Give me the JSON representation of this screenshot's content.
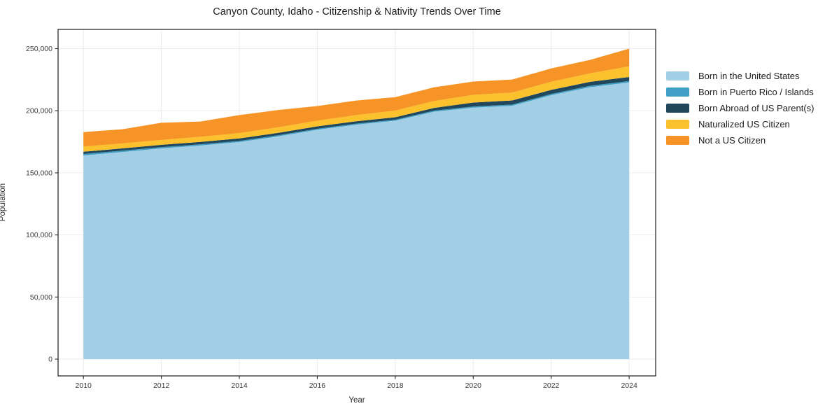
{
  "title": "Canyon County, Idaho - Citizenship & Nativity Trends Over Time",
  "axes": {
    "x_label": "Year",
    "y_label": "Population"
  },
  "chart_data": {
    "type": "area",
    "stacked": true,
    "title": "Canyon County, Idaho - Citizenship & Nativity Trends Over Time",
    "xlabel": "Year",
    "ylabel": "Population",
    "x": [
      2010,
      2011,
      2012,
      2013,
      2014,
      2015,
      2016,
      2017,
      2018,
      2019,
      2020,
      2021,
      2022,
      2023,
      2024
    ],
    "series": [
      {
        "name": "Born in the United States",
        "color": "#a3cfe6",
        "values": [
          164000,
          166800,
          169700,
          172000,
          174800,
          179400,
          184700,
          188800,
          192000,
          199300,
          202500,
          204000,
          212500,
          219000,
          222800
        ]
      },
      {
        "name": "Born in Puerto Rico / Islands",
        "color": "#3f9fc4",
        "values": [
          1200,
          1100,
          1000,
          1000,
          900,
          900,
          800,
          800,
          800,
          800,
          900,
          1000,
          1000,
          1100,
          1100
        ]
      },
      {
        "name": "Born Abroad of US Parent(s)",
        "color": "#21475c",
        "values": [
          1800,
          1800,
          1900,
          1900,
          2000,
          1900,
          1900,
          1900,
          2000,
          2200,
          3200,
          3300,
          3300,
          3200,
          3300
        ]
      },
      {
        "name": "Naturalized US Citizen",
        "color": "#fcc22d",
        "values": [
          4200,
          4000,
          3900,
          4100,
          4300,
          4500,
          4600,
          5000,
          5300,
          5600,
          6200,
          6300,
          6600,
          6800,
          8500
        ]
      },
      {
        "name": "Not a US Citizen",
        "color": "#f79428",
        "values": [
          11600,
          11400,
          13800,
          12300,
          14500,
          13900,
          11800,
          11700,
          10900,
          11000,
          10700,
          10500,
          10700,
          10900,
          14300
        ]
      }
    ],
    "x_ticks": [
      2010,
      2012,
      2014,
      2016,
      2018,
      2020,
      2022,
      2024
    ],
    "x_tick_labels": [
      "2010",
      "2012",
      "2014",
      "2016",
      "2018",
      "2020",
      "2022",
      "2024"
    ],
    "y_ticks": [
      0,
      50000,
      100000,
      150000,
      200000,
      250000
    ],
    "y_tick_labels": [
      "0",
      "50,000",
      "100,000",
      "150,000",
      "200,000",
      "250,000"
    ],
    "xlim": [
      2009.35,
      2024.68
    ],
    "ylim": [
      -13500,
      265500
    ],
    "grid": true,
    "legend_position": "right"
  },
  "style": {
    "grid_color": "#ebebeb",
    "spine_color": "#2b2b2b",
    "tick_label_color": "#3a3a3a",
    "background": "#ffffff"
  }
}
